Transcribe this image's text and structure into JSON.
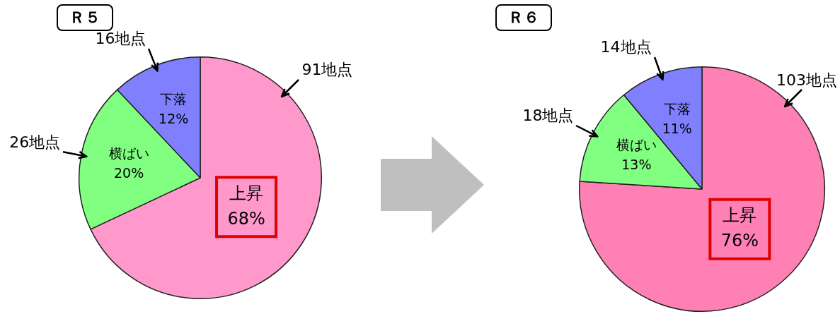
{
  "chart_data": [
    {
      "type": "pie",
      "title": "Ｒ５",
      "categories": [
        "上昇",
        "横ばい",
        "下落"
      ],
      "values": [
        68,
        20,
        12
      ],
      "colors": [
        "#ff99cc",
        "#80ff80",
        "#8080ff"
      ],
      "value_labels": [
        "68%",
        "20%",
        "12%"
      ],
      "annotations": [
        {
          "text": "91地点",
          "x": "上昇"
        },
        {
          "text": "26地点",
          "x": "横ばい"
        },
        {
          "text": "16地点",
          "x": "下落"
        }
      ]
    },
    {
      "type": "pie",
      "title": "Ｒ６",
      "categories": [
        "上昇",
        "横ばい",
        "下落"
      ],
      "values": [
        76,
        13,
        11
      ],
      "colors": [
        "#ff80b4",
        "#80ff80",
        "#8080ff"
      ],
      "value_labels": [
        "76%",
        "13%",
        "11%"
      ],
      "annotations": [
        {
          "text": "103地点",
          "x": "上昇"
        },
        {
          "text": "18地点",
          "x": "横ばい"
        },
        {
          "text": "14地点",
          "x": "下落"
        }
      ]
    }
  ]
}
